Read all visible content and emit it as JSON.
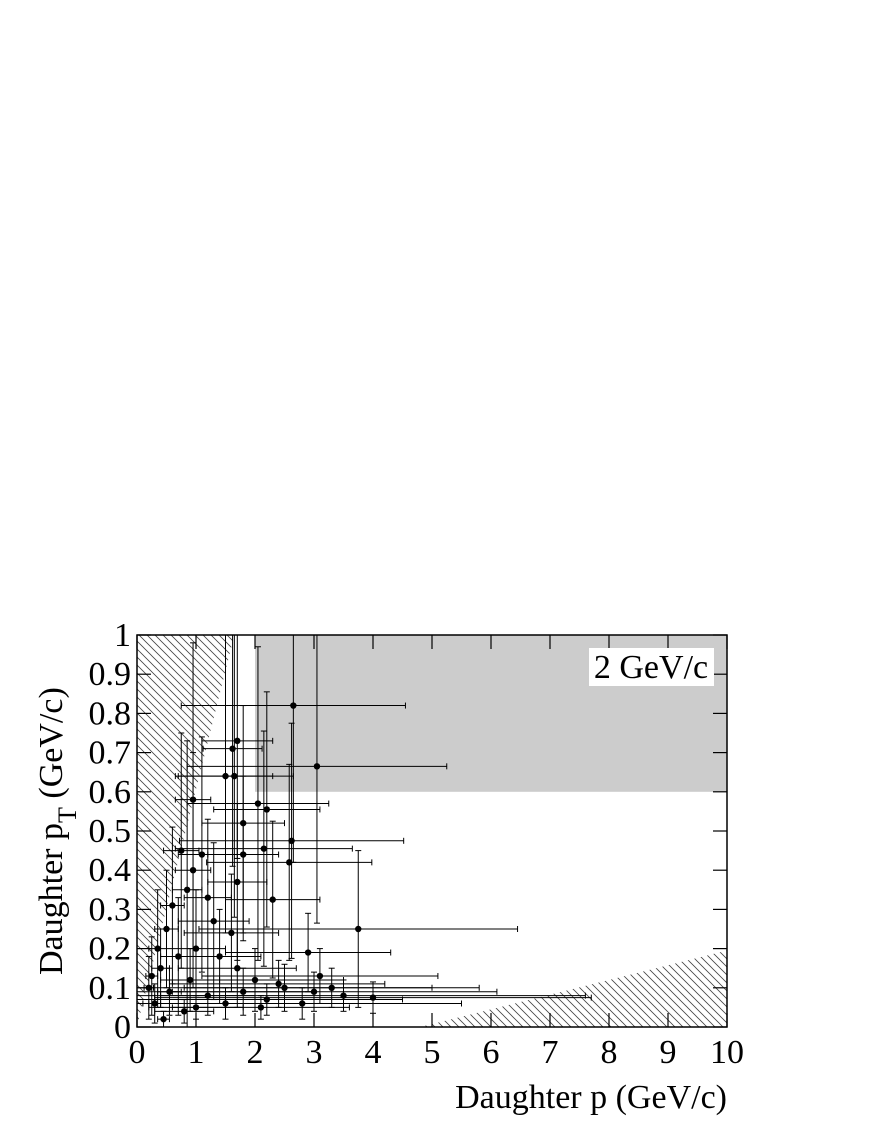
{
  "chart_data": {
    "type": "errorbar-scatter",
    "x_label": "Daughter p (GeV/c)",
    "y_label": [
      "Daughter p",
      "T",
      " (GeV/c)"
    ],
    "annotation": "2 GeV/c",
    "xlim": [
      0,
      10
    ],
    "ylim": [
      0,
      1
    ],
    "xticks": [
      0,
      1,
      2,
      3,
      4,
      5,
      6,
      7,
      8,
      9,
      10
    ],
    "yticks": [
      0,
      0.1,
      0.2,
      0.3,
      0.4,
      0.5,
      0.6,
      0.7,
      0.8,
      0.9,
      1
    ],
    "shaded_region": {
      "x": [
        2,
        10
      ],
      "y": [
        0.6,
        1
      ],
      "color": "#cccccc"
    },
    "hatched_regions": [
      {
        "x": [
          0,
          1.65,
          0
        ],
        "y": [
          0,
          1,
          1
        ]
      },
      {
        "x": [
          4.8,
          10,
          10
        ],
        "y": [
          0,
          0.195,
          0
        ]
      }
    ],
    "color": "#000000",
    "series": [
      {
        "x": [
          2.65,
          3.05,
          1.7,
          1.62,
          1.5,
          1.65,
          2.05,
          2.2,
          1.8,
          2.62,
          2.15,
          2.58,
          1.8,
          2.3,
          3.75,
          1.7,
          1.1,
          0.95,
          0.85,
          1.2,
          0.6,
          0.5,
          0.35,
          0.25,
          0.2,
          0.3,
          0.45,
          0.7,
          1.0,
          1.4,
          1.7,
          2.0,
          2.5,
          3.0,
          3.5,
          4.0,
          2.2,
          1.5,
          1.0,
          0.8,
          2.8,
          3.3,
          1.8,
          2.4,
          1.2,
          0.9,
          1.6,
          1.3,
          0.75,
          0.95,
          2.9,
          3.1,
          2.1,
          0.55,
          0.4
        ],
        "values": [
          0.82,
          0.665,
          0.73,
          0.71,
          0.64,
          0.64,
          0.57,
          0.555,
          0.52,
          0.475,
          0.455,
          0.42,
          0.44,
          0.325,
          0.25,
          0.37,
          0.44,
          0.4,
          0.35,
          0.33,
          0.31,
          0.25,
          0.2,
          0.13,
          0.1,
          0.06,
          0.02,
          0.18,
          0.2,
          0.18,
          0.15,
          0.12,
          0.1,
          0.09,
          0.08,
          0.075,
          0.07,
          0.06,
          0.05,
          0.04,
          0.06,
          0.1,
          0.09,
          0.11,
          0.08,
          0.12,
          0.24,
          0.27,
          0.45,
          0.58,
          0.19,
          0.13,
          0.05,
          0.09,
          0.15
        ],
        "xerr": [
          1.9,
          2.2,
          0.6,
          0.5,
          0.8,
          1.0,
          1.2,
          0.9,
          0.7,
          1.9,
          1.5,
          1.4,
          0.6,
          0.8,
          2.7,
          0.5,
          0.4,
          0.3,
          0.25,
          0.4,
          0.2,
          0.2,
          0.15,
          0.1,
          0.08,
          0.1,
          0.1,
          0.3,
          0.5,
          0.7,
          1.0,
          1.5,
          2.5,
          3.1,
          4.1,
          3.7,
          2.3,
          1.5,
          0.8,
          0.5,
          2.7,
          2.5,
          1.2,
          1.8,
          0.8,
          0.5,
          0.8,
          0.6,
          0.3,
          0.3,
          1.4,
          2.0,
          1.5,
          0.2,
          0.15
        ],
        "yerr": [
          0.4,
          0.4,
          0.3,
          0.3,
          0.4,
          0.36,
          0.4,
          0.3,
          0.3,
          0.3,
          0.3,
          0.25,
          0.2,
          0.2,
          0.2,
          0.2,
          0.3,
          0.3,
          0.38,
          0.2,
          0.2,
          0.15,
          0.15,
          0.1,
          0.08,
          0.05,
          0.02,
          0.15,
          0.15,
          0.12,
          0.1,
          0.08,
          0.06,
          0.05,
          0.04,
          0.04,
          0.04,
          0.04,
          0.03,
          0.03,
          0.04,
          0.05,
          0.06,
          0.06,
          0.05,
          0.08,
          0.15,
          0.2,
          0.3,
          0.4,
          0.1,
          0.07,
          0.03,
          0.06,
          0.1
        ]
      }
    ]
  }
}
